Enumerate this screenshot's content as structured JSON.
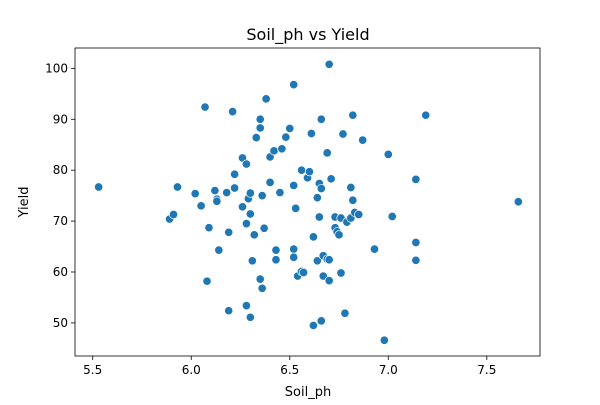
{
  "chart_data": {
    "type": "scatter",
    "title": "Soil_ph vs Yield",
    "xlabel": "Soil_ph",
    "ylabel": "Yield",
    "xlim": [
      5.41,
      7.77
    ],
    "ylim": [
      43.5,
      104.0
    ],
    "xticks": [
      5.5,
      6.0,
      6.5,
      7.0,
      7.5
    ],
    "xtick_labels": [
      "5.5",
      "6.0",
      "6.5",
      "7.0",
      "7.5"
    ],
    "yticks": [
      50,
      60,
      70,
      80,
      90,
      100
    ],
    "ytick_labels": [
      "50",
      "60",
      "70",
      "80",
      "90",
      "100"
    ],
    "grid": false,
    "marker_color": "#1f77b4",
    "points": [
      {
        "x": 5.53,
        "y": 76.7
      },
      {
        "x": 5.89,
        "y": 70.4
      },
      {
        "x": 5.91,
        "y": 71.3
      },
      {
        "x": 5.93,
        "y": 76.7
      },
      {
        "x": 6.02,
        "y": 75.4
      },
      {
        "x": 6.05,
        "y": 73.0
      },
      {
        "x": 6.07,
        "y": 92.4
      },
      {
        "x": 6.08,
        "y": 58.2
      },
      {
        "x": 6.09,
        "y": 68.7
      },
      {
        "x": 6.12,
        "y": 76.0
      },
      {
        "x": 6.13,
        "y": 74.3
      },
      {
        "x": 6.13,
        "y": 73.9
      },
      {
        "x": 6.14,
        "y": 64.3
      },
      {
        "x": 6.18,
        "y": 75.6
      },
      {
        "x": 6.19,
        "y": 67.8
      },
      {
        "x": 6.19,
        "y": 52.4
      },
      {
        "x": 6.21,
        "y": 91.5
      },
      {
        "x": 6.22,
        "y": 79.2
      },
      {
        "x": 6.22,
        "y": 76.5
      },
      {
        "x": 6.26,
        "y": 72.8
      },
      {
        "x": 6.26,
        "y": 82.4
      },
      {
        "x": 6.28,
        "y": 81.2
      },
      {
        "x": 6.28,
        "y": 69.5
      },
      {
        "x": 6.28,
        "y": 53.4
      },
      {
        "x": 6.29,
        "y": 74.4
      },
      {
        "x": 6.3,
        "y": 75.5
      },
      {
        "x": 6.3,
        "y": 71.4
      },
      {
        "x": 6.3,
        "y": 51.1
      },
      {
        "x": 6.31,
        "y": 62.2
      },
      {
        "x": 6.32,
        "y": 67.3
      },
      {
        "x": 6.33,
        "y": 86.4
      },
      {
        "x": 6.35,
        "y": 90.0
      },
      {
        "x": 6.35,
        "y": 88.3
      },
      {
        "x": 6.35,
        "y": 58.6
      },
      {
        "x": 6.36,
        "y": 75.0
      },
      {
        "x": 6.36,
        "y": 56.8
      },
      {
        "x": 6.37,
        "y": 68.6
      },
      {
        "x": 6.38,
        "y": 94.0
      },
      {
        "x": 6.4,
        "y": 77.6
      },
      {
        "x": 6.4,
        "y": 82.6
      },
      {
        "x": 6.42,
        "y": 83.8
      },
      {
        "x": 6.43,
        "y": 64.3
      },
      {
        "x": 6.43,
        "y": 62.4
      },
      {
        "x": 6.45,
        "y": 75.6
      },
      {
        "x": 6.46,
        "y": 84.2
      },
      {
        "x": 6.48,
        "y": 86.5
      },
      {
        "x": 6.5,
        "y": 88.2
      },
      {
        "x": 6.52,
        "y": 96.8
      },
      {
        "x": 6.52,
        "y": 77.0
      },
      {
        "x": 6.52,
        "y": 64.5
      },
      {
        "x": 6.52,
        "y": 62.9
      },
      {
        "x": 6.53,
        "y": 72.5
      },
      {
        "x": 6.54,
        "y": 59.2
      },
      {
        "x": 6.56,
        "y": 80.0
      },
      {
        "x": 6.56,
        "y": 60.1
      },
      {
        "x": 6.57,
        "y": 59.9
      },
      {
        "x": 6.59,
        "y": 78.5
      },
      {
        "x": 6.6,
        "y": 79.7
      },
      {
        "x": 6.61,
        "y": 87.2
      },
      {
        "x": 6.62,
        "y": 66.9
      },
      {
        "x": 6.62,
        "y": 49.5
      },
      {
        "x": 6.64,
        "y": 62.2
      },
      {
        "x": 6.64,
        "y": 74.6
      },
      {
        "x": 6.65,
        "y": 77.4
      },
      {
        "x": 6.65,
        "y": 70.8
      },
      {
        "x": 6.66,
        "y": 90.0
      },
      {
        "x": 6.66,
        "y": 50.4
      },
      {
        "x": 6.66,
        "y": 76.4
      },
      {
        "x": 6.67,
        "y": 63.2
      },
      {
        "x": 6.67,
        "y": 59.2
      },
      {
        "x": 6.69,
        "y": 83.4
      },
      {
        "x": 6.69,
        "y": 62.5
      },
      {
        "x": 6.7,
        "y": 100.8
      },
      {
        "x": 6.7,
        "y": 62.4
      },
      {
        "x": 6.7,
        "y": 58.3
      },
      {
        "x": 6.71,
        "y": 78.3
      },
      {
        "x": 6.73,
        "y": 70.8
      },
      {
        "x": 6.73,
        "y": 68.7
      },
      {
        "x": 6.74,
        "y": 67.9
      },
      {
        "x": 6.75,
        "y": 67.3
      },
      {
        "x": 6.76,
        "y": 70.6
      },
      {
        "x": 6.76,
        "y": 59.8
      },
      {
        "x": 6.77,
        "y": 87.1
      },
      {
        "x": 6.78,
        "y": 51.9
      },
      {
        "x": 6.79,
        "y": 69.8
      },
      {
        "x": 6.81,
        "y": 76.6
      },
      {
        "x": 6.81,
        "y": 70.6
      },
      {
        "x": 6.82,
        "y": 90.8
      },
      {
        "x": 6.82,
        "y": 74.1
      },
      {
        "x": 6.83,
        "y": 71.7
      },
      {
        "x": 6.85,
        "y": 71.3
      },
      {
        "x": 6.87,
        "y": 85.9
      },
      {
        "x": 6.93,
        "y": 64.5
      },
      {
        "x": 6.98,
        "y": 46.6
      },
      {
        "x": 7.0,
        "y": 83.1
      },
      {
        "x": 7.02,
        "y": 70.9
      },
      {
        "x": 7.14,
        "y": 78.2
      },
      {
        "x": 7.14,
        "y": 65.8
      },
      {
        "x": 7.14,
        "y": 62.3
      },
      {
        "x": 7.19,
        "y": 90.8
      },
      {
        "x": 7.66,
        "y": 73.8
      }
    ]
  }
}
